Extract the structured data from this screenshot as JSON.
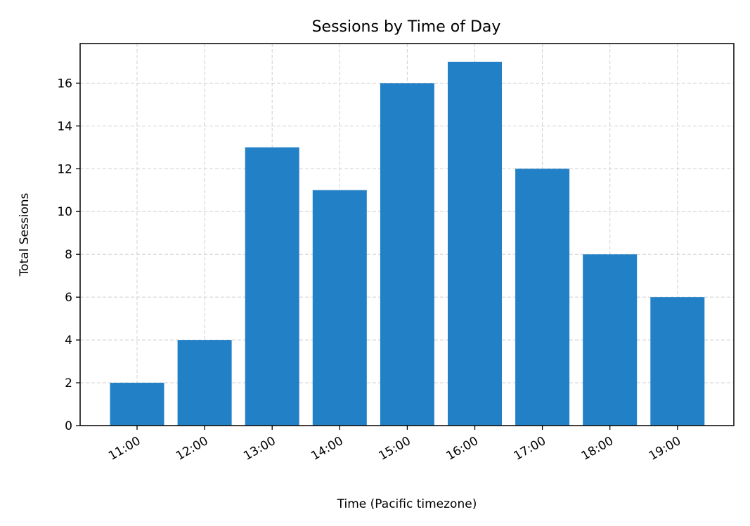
{
  "chart_data": {
    "type": "bar",
    "title": "Sessions by Time of Day",
    "xlabel": "Time (Pacific timezone)",
    "ylabel": "Total Sessions",
    "categories": [
      "11:00",
      "12:00",
      "13:00",
      "14:00",
      "15:00",
      "16:00",
      "17:00",
      "18:00",
      "19:00"
    ],
    "values": [
      2,
      4,
      13,
      11,
      16,
      17,
      12,
      8,
      6
    ],
    "ylim": [
      0,
      17.85
    ],
    "yticks": [
      0,
      2,
      4,
      6,
      8,
      10,
      12,
      14,
      16
    ],
    "grid": true,
    "bar_color": "#2280c6"
  }
}
